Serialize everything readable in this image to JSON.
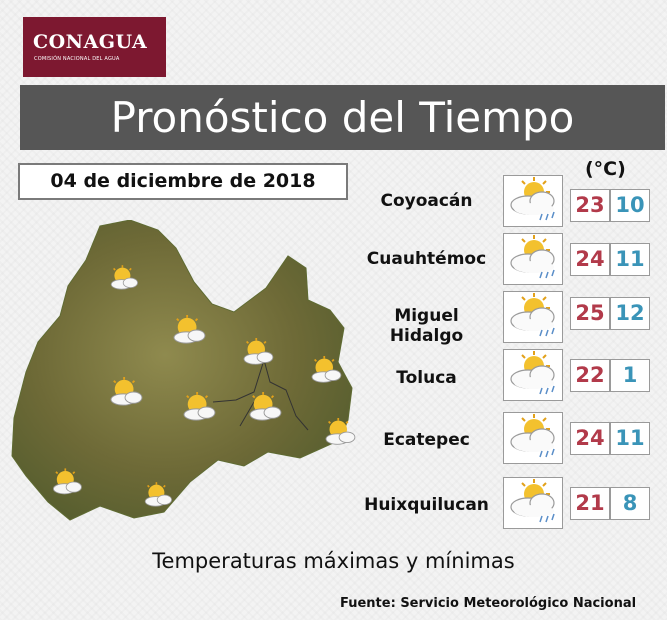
{
  "logo": {
    "name": "CONAGUA",
    "subtitle": "COMISIÓN NACIONAL DEL AGUA"
  },
  "title": "Pronóstico del Tiempo",
  "date": "04 de diciembre de 2018",
  "unit_label": "(°C)",
  "forecasts": [
    {
      "city": "Coyoacán",
      "max": "23",
      "min": "10",
      "icon": "partly-cloudy-rain-icon"
    },
    {
      "city": "Cuauhtémoc",
      "max": "24",
      "min": "11",
      "icon": "partly-cloudy-rain-icon"
    },
    {
      "city": "Miguel Hidalgo",
      "max": "25",
      "min": "12",
      "icon": "partly-cloudy-rain-icon"
    },
    {
      "city": "Toluca",
      "max": "22",
      "min": "1",
      "icon": "partly-cloudy-rain-icon"
    },
    {
      "city": "Ecatepec",
      "max": "24",
      "min": "11",
      "icon": "partly-cloudy-rain-icon"
    },
    {
      "city": "Huixquilucan",
      "max": "21",
      "min": "8",
      "icon": "partly-cloudy-rain-icon"
    }
  ],
  "map_icon": "partly-cloudy-icon",
  "caption": "Temperaturas máximas y mínimas",
  "source": "Fuente: Servicio Meteorológico Nacional",
  "colors": {
    "brand": "#7d1830",
    "max": "#b23a4a",
    "min": "#3a94b8",
    "title_bar": "#565656"
  }
}
